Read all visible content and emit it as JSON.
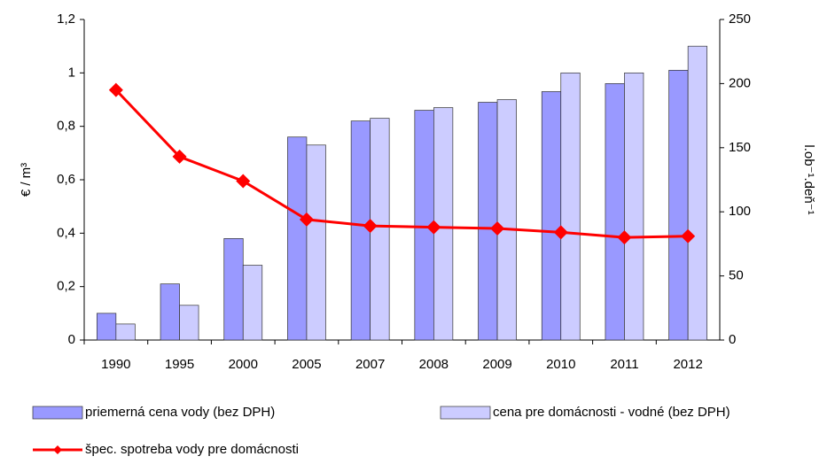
{
  "chart_data": {
    "type": "bar",
    "categories": [
      "1990",
      "1995",
      "2000",
      "2005",
      "2007",
      "2008",
      "2009",
      "2010",
      "2011",
      "2012"
    ],
    "series": [
      {
        "name": "priemerná cena vody (bez DPH)",
        "color": "#9999ff",
        "type": "bar",
        "axis": "y",
        "values": [
          0.1,
          0.21,
          0.38,
          0.76,
          0.82,
          0.86,
          0.89,
          0.93,
          0.96,
          1.01
        ]
      },
      {
        "name": "cena pre domácnosti - vodné (bez DPH)",
        "color": "#ccccff",
        "type": "bar",
        "axis": "y",
        "values": [
          0.06,
          0.13,
          0.28,
          0.73,
          0.83,
          0.87,
          0.9,
          1.0,
          1.0,
          1.1
        ]
      },
      {
        "name": "špec. spotreba vody pre domácnosti",
        "color": "#ff0000",
        "type": "line",
        "axis": "y2",
        "values": [
          195,
          143,
          124,
          94,
          89,
          88,
          87,
          84,
          80,
          81
        ]
      }
    ],
    "ylabel": "€ / m³",
    "y2label": "l.ob⁻¹.deň⁻¹",
    "ylim": [
      0,
      1.2
    ],
    "yticks": [
      0,
      {
        "value": 0.2,
        "label": "0,2"
      },
      {
        "value": 0.4,
        "label": "0,4"
      },
      {
        "value": 0.6,
        "label": "0,6"
      },
      {
        "value": 0.8,
        "label": "0,8"
      },
      1,
      {
        "value": 1.2,
        "label": "1,2"
      }
    ],
    "y2lim": [
      0,
      250
    ],
    "y2ticks": [
      0,
      50,
      100,
      150,
      200,
      250
    ],
    "grid": false,
    "legend": "bottom"
  }
}
